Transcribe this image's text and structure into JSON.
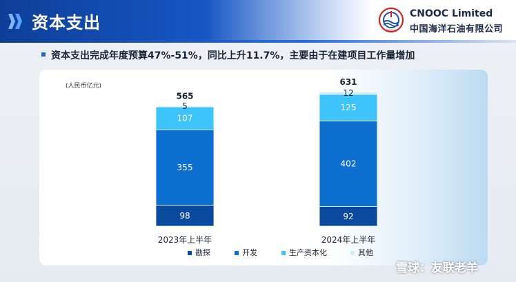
{
  "header": {
    "title": "资本支出",
    "company_en": "CNOOC Limited",
    "company_cn": "中国海洋石油有限公司",
    "logo_text": "CNOOC"
  },
  "subtitle": "资本支出完成年度预算47%-51%，同比上升11.7%，主要由于在建项目工作量增加",
  "colors": {
    "exploration": "#0a4a9e",
    "development": "#0d6fd0",
    "production": "#3ec3fb",
    "other": "#cdeefc",
    "header": "#1656c4"
  },
  "chart_data": {
    "type": "bar",
    "stacked": true,
    "unit": "(人民币亿元)",
    "categories": [
      "2023年上半年",
      "2024年上半年"
    ],
    "series": [
      {
        "name": "勘探",
        "values": [
          98,
          92
        ]
      },
      {
        "name": "开发",
        "values": [
          355,
          402
        ]
      },
      {
        "name": "生产资本化",
        "values": [
          107,
          125
        ]
      },
      {
        "name": "其他",
        "values": [
          5,
          12
        ]
      }
    ],
    "totals": [
      565,
      631
    ],
    "legend": "bottom"
  },
  "watermark": "雪球：友联老羊"
}
